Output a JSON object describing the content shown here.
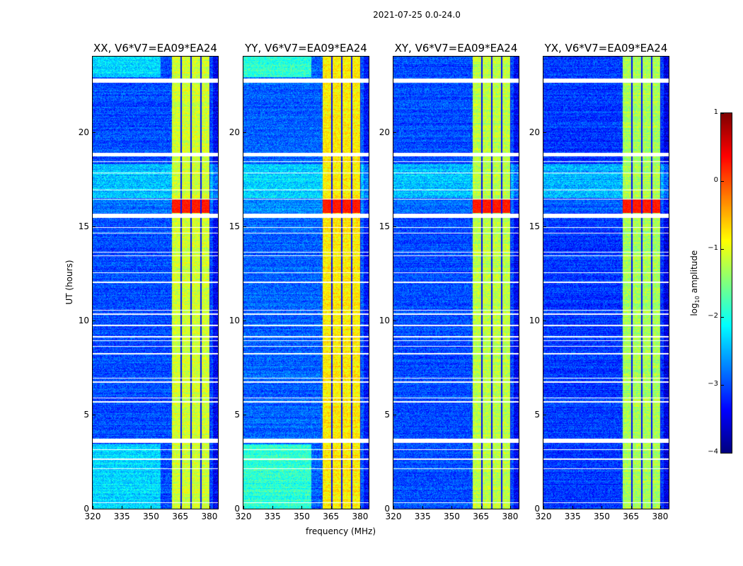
{
  "chart_data": {
    "type": "heatmap",
    "title": "2021-07-25 0.0-24.0",
    "xlabel": "frequency (MHz)",
    "ylabel": "UT (hours)",
    "xlim": [
      320,
      384.4
    ],
    "ylim": [
      0,
      24
    ],
    "xticks": [
      320,
      335,
      350,
      365,
      380
    ],
    "yticks": [
      0,
      5,
      10,
      15,
      20
    ],
    "panels": [
      {
        "title": "XX, V6*V7=EA09*EA24",
        "pol": "XX",
        "band_level": -1.1,
        "base_level": -3.0
      },
      {
        "title": "YY, V6*V7=EA09*EA24",
        "pol": "YY",
        "band_level": -0.8,
        "base_level": -2.9
      },
      {
        "title": "XY, V6*V7=EA09*EA24",
        "pol": "XY",
        "band_level": -1.2,
        "base_level": -3.0
      },
      {
        "title": "YX, V6*V7=EA09*EA24",
        "pol": "YX",
        "band_level": -1.3,
        "base_level": -3.1
      }
    ],
    "bright_band_mhz": [
      360.7,
      380.4
    ],
    "dark_channels_mhz": [
      365.5,
      370.5,
      375.6,
      380.4
    ],
    "hot_interval_hours": [
      15.7,
      16.4
    ],
    "flagged_hours": [
      [
        22.6,
        22.85
      ],
      [
        18.7,
        18.9
      ],
      [
        18.4,
        18.45
      ],
      [
        17.8,
        17.85
      ],
      [
        16.9,
        16.95
      ],
      [
        16.4,
        16.45
      ],
      [
        15.45,
        15.65
      ],
      [
        14.9,
        14.95
      ],
      [
        14.6,
        14.65
      ],
      [
        13.6,
        13.65
      ],
      [
        13.4,
        13.45
      ],
      [
        12.5,
        12.55
      ],
      [
        12.0,
        12.05
      ],
      [
        10.5,
        10.55
      ],
      [
        10.3,
        10.35
      ],
      [
        9.7,
        9.75
      ],
      [
        9.1,
        9.15
      ],
      [
        8.9,
        8.95
      ],
      [
        8.6,
        8.65
      ],
      [
        8.2,
        8.25
      ],
      [
        6.9,
        6.95
      ],
      [
        6.7,
        6.75
      ],
      [
        5.85,
        5.9
      ],
      [
        5.65,
        5.7
      ],
      [
        3.5,
        3.7
      ],
      [
        3.1,
        3.15
      ],
      [
        2.6,
        2.65
      ],
      [
        2.1,
        2.15
      ],
      [
        0.3,
        0.35
      ]
    ],
    "colorbar": {
      "label": "log₁₀ amplitude",
      "label_main": "log",
      "label_sub": "10",
      "label_rest": " amplitude",
      "range": [
        -4,
        1
      ],
      "ticks": [
        1,
        0,
        -1,
        -2,
        -3,
        -4
      ],
      "tick_labels": [
        "1",
        "0",
        "−1",
        "−2",
        "−3",
        "−4"
      ],
      "colormap": "jet"
    }
  }
}
